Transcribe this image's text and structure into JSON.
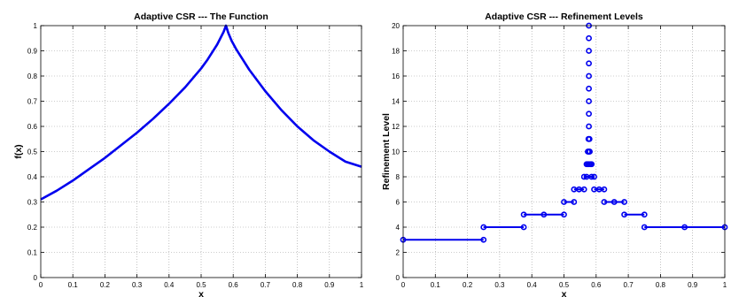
{
  "chart_data": [
    {
      "type": "line",
      "title": "Adaptive CSR --- The Function",
      "xlabel": "x",
      "ylabel": "f(x)",
      "xlim": [
        0,
        1
      ],
      "ylim": [
        0,
        1
      ],
      "xticks": [
        "0",
        "0.1",
        "0.2",
        "0.3",
        "0.4",
        "0.5",
        "0.6",
        "0.7",
        "0.8",
        "0.9",
        "1"
      ],
      "yticks": [
        "0",
        "0.1",
        "0.2",
        "0.3",
        "0.4",
        "0.5",
        "0.6",
        "0.7",
        "0.8",
        "0.9",
        "1"
      ],
      "grid": true,
      "color": "#0000ee",
      "x": [
        0,
        0.05,
        0.1,
        0.15,
        0.2,
        0.25,
        0.3,
        0.35,
        0.4,
        0.45,
        0.5,
        0.52,
        0.54,
        0.55,
        0.56,
        0.57,
        0.5774,
        0.585,
        0.595,
        0.61,
        0.63,
        0.65,
        0.7,
        0.75,
        0.8,
        0.85,
        0.9,
        0.95,
        1.0
      ],
      "y": [
        0.31,
        0.345,
        0.385,
        0.43,
        0.475,
        0.525,
        0.575,
        0.63,
        0.69,
        0.755,
        0.83,
        0.865,
        0.905,
        0.925,
        0.95,
        0.975,
        1.0,
        0.97,
        0.94,
        0.905,
        0.865,
        0.825,
        0.74,
        0.665,
        0.6,
        0.545,
        0.5,
        0.46,
        0.44
      ]
    },
    {
      "type": "scatter",
      "title": "Adaptive CSR --- Refinement Levels",
      "xlabel": "x",
      "ylabel": "Refinement Level",
      "xlim": [
        0,
        1
      ],
      "ylim": [
        0,
        20
      ],
      "xticks": [
        "0",
        "0.1",
        "0.2",
        "0.3",
        "0.4",
        "0.5",
        "0.6",
        "0.7",
        "0.8",
        "0.9",
        "1"
      ],
      "yticks": [
        "0",
        "2",
        "4",
        "6",
        "8",
        "10",
        "12",
        "14",
        "16",
        "18",
        "20"
      ],
      "grid": true,
      "color": "#0000ee",
      "segments": [
        {
          "level": 3,
          "x": [
            0,
            0.25
          ]
        },
        {
          "level": 4,
          "x": [
            0.25,
            0.375
          ]
        },
        {
          "level": 5,
          "x": [
            0.375,
            0.4375
          ]
        },
        {
          "level": 5,
          "x": [
            0.4375,
            0.5
          ]
        },
        {
          "level": 6,
          "x": [
            0.5,
            0.53125
          ]
        },
        {
          "level": 7,
          "x": [
            0.53125,
            0.5625
          ]
        },
        {
          "level": 8,
          "x": [
            0.5625,
            0.5785
          ]
        },
        {
          "level": 8,
          "x": [
            0.5785,
            0.59375
          ]
        },
        {
          "level": 7,
          "x": [
            0.59375,
            0.625
          ]
        },
        {
          "level": 6,
          "x": [
            0.625,
            0.6875
          ]
        },
        {
          "level": 5,
          "x": [
            0.6875,
            0.75
          ]
        },
        {
          "level": 4,
          "x": [
            0.75,
            1.0
          ]
        }
      ],
      "points": [
        {
          "x": 0,
          "level": 3
        },
        {
          "x": 0.25,
          "level": 3
        },
        {
          "x": 0.25,
          "level": 4
        },
        {
          "x": 0.375,
          "level": 4
        },
        {
          "x": 0.375,
          "level": 5
        },
        {
          "x": 0.4375,
          "level": 5
        },
        {
          "x": 0.5,
          "level": 5
        },
        {
          "x": 0.5,
          "level": 6
        },
        {
          "x": 0.53125,
          "level": 6
        },
        {
          "x": 0.53125,
          "level": 7
        },
        {
          "x": 0.546875,
          "level": 7
        },
        {
          "x": 0.5625,
          "level": 7
        },
        {
          "x": 0.5625,
          "level": 8
        },
        {
          "x": 0.5703,
          "level": 8
        },
        {
          "x": 0.5859,
          "level": 8
        },
        {
          "x": 0.59375,
          "level": 8
        },
        {
          "x": 0.5703,
          "level": 9
        },
        {
          "x": 0.5742,
          "level": 9
        },
        {
          "x": 0.5781,
          "level": 9
        },
        {
          "x": 0.582,
          "level": 9
        },
        {
          "x": 0.5859,
          "level": 9
        },
        {
          "x": 0.5742,
          "level": 10
        },
        {
          "x": 0.5762,
          "level": 10
        },
        {
          "x": 0.5781,
          "level": 10
        },
        {
          "x": 0.5801,
          "level": 10
        },
        {
          "x": 0.5762,
          "level": 11
        },
        {
          "x": 0.5772,
          "level": 11
        },
        {
          "x": 0.5782,
          "level": 11
        },
        {
          "x": 0.5792,
          "level": 11
        },
        {
          "x": 0.5774,
          "level": 12
        },
        {
          "x": 0.5774,
          "level": 13
        },
        {
          "x": 0.5774,
          "level": 14
        },
        {
          "x": 0.5774,
          "level": 15
        },
        {
          "x": 0.5774,
          "level": 16
        },
        {
          "x": 0.5774,
          "level": 17
        },
        {
          "x": 0.5774,
          "level": 18
        },
        {
          "x": 0.5774,
          "level": 19
        },
        {
          "x": 0.5774,
          "level": 20
        },
        {
          "x": 0.59375,
          "level": 7
        },
        {
          "x": 0.609375,
          "level": 7
        },
        {
          "x": 0.625,
          "level": 7
        },
        {
          "x": 0.625,
          "level": 6
        },
        {
          "x": 0.65625,
          "level": 6
        },
        {
          "x": 0.6875,
          "level": 6
        },
        {
          "x": 0.6875,
          "level": 5
        },
        {
          "x": 0.75,
          "level": 5
        },
        {
          "x": 0.75,
          "level": 4
        },
        {
          "x": 0.875,
          "level": 4
        },
        {
          "x": 1.0,
          "level": 4
        }
      ]
    }
  ]
}
